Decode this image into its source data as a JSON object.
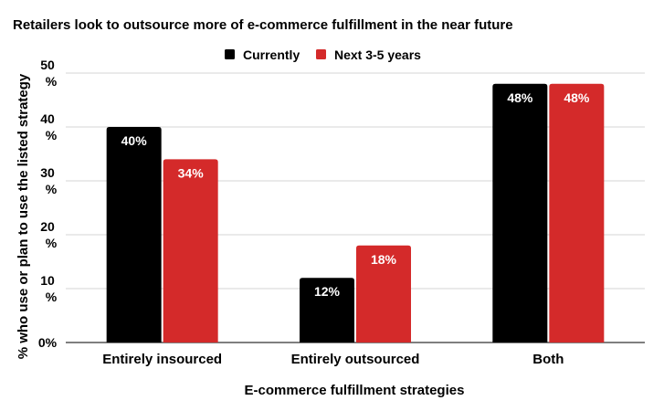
{
  "chart_data": {
    "type": "bar",
    "title": "Retailers look to outsource more of e-commerce fulfillment in the near future",
    "xlabel": "E-commerce fulfillment strategies",
    "ylabel": "% who use or plan to use the listed strategy",
    "categories": [
      "Entirely insourced",
      "Entirely outsourced",
      "Both"
    ],
    "series": [
      {
        "name": "Currently",
        "color": "#000000",
        "values": [
          40,
          12,
          48
        ],
        "labels": [
          "40%",
          "12%",
          "48%"
        ]
      },
      {
        "name": "Next 3-5 years",
        "color": "#d42a2a",
        "values": [
          34,
          18,
          48
        ],
        "labels": [
          "34%",
          "18%",
          "48%"
        ]
      }
    ],
    "ylim": [
      0,
      50
    ],
    "yticks": [
      {
        "value": 0,
        "line1": "0%",
        "line2": ""
      },
      {
        "value": 10,
        "line1": "10",
        "line2": "%"
      },
      {
        "value": 20,
        "line1": "20",
        "line2": "%"
      },
      {
        "value": 30,
        "line1": "30",
        "line2": "%"
      },
      {
        "value": 40,
        "line1": "40",
        "line2": "%"
      },
      {
        "value": 50,
        "line1": "50",
        "line2": "%"
      }
    ],
    "grid": true,
    "legend_position": "top-center"
  }
}
